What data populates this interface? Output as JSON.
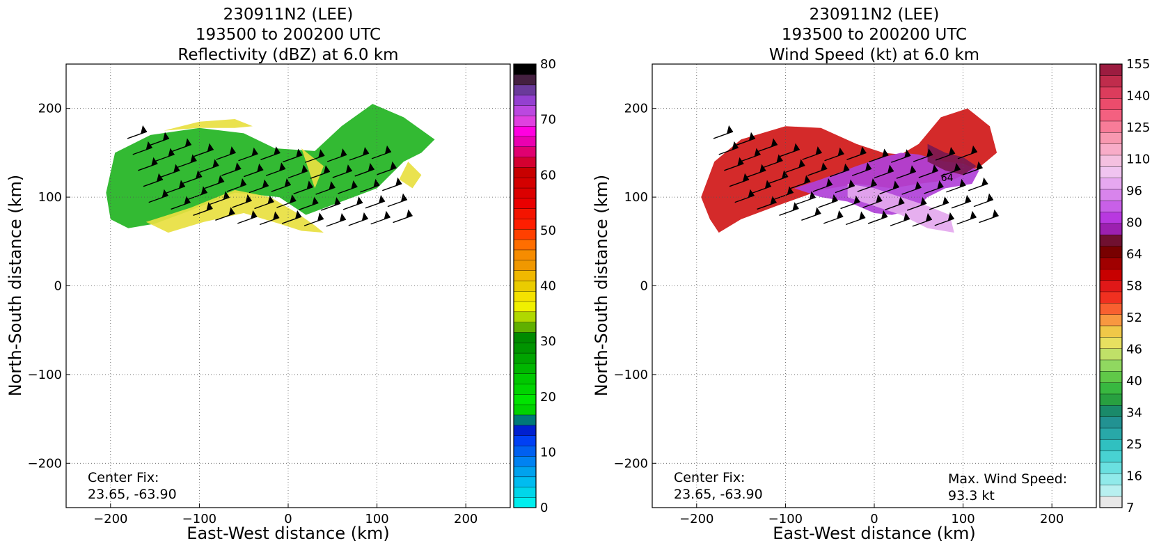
{
  "chart_data": [
    {
      "type": "heatmap",
      "title": [
        "230911N2 (LEE)",
        "193500 to 200200 UTC",
        "Reflectivity (dBZ) at 6.0 km"
      ],
      "xlabel": "East-West distance (km)",
      "ylabel": "North-South distance (km)",
      "xlim": [
        -250,
        250
      ],
      "ylim": [
        -250,
        250
      ],
      "xticks": [
        -200,
        -100,
        0,
        100,
        200
      ],
      "yticks": [
        -200,
        -100,
        0,
        100,
        200
      ],
      "xticklabels": [
        "−200",
        "−100",
        "0",
        "100",
        "200"
      ],
      "yticklabels": [
        "−200",
        "−100",
        "0",
        "100",
        "200"
      ],
      "grid": true,
      "annotation": [
        "Center Fix:",
        "23.65, -63.90"
      ],
      "colorbar": {
        "ticks": [
          "0",
          "10",
          "20",
          "30",
          "40",
          "50",
          "60",
          "70",
          "80"
        ],
        "colors": [
          "#00eeee",
          "#00d6ea",
          "#00bcf0",
          "#00a2ee",
          "#0082f2",
          "#0060f0",
          "#0040f4",
          "#0020d0",
          "#007878",
          "#00d200",
          "#00e400",
          "#00d400",
          "#00c800",
          "#00b600",
          "#00a400",
          "#009400",
          "#008a00",
          "#60b000",
          "#b0d800",
          "#f0f000",
          "#f4e200",
          "#eacc00",
          "#f0b800",
          "#f09800",
          "#f68c00",
          "#ff6e00",
          "#ff4000",
          "#ff1e00",
          "#f41400",
          "#ea0000",
          "#dc0000",
          "#d40000",
          "#c80000",
          "#d40030",
          "#e00070",
          "#ea00b0",
          "#ff00e0",
          "#e040e0",
          "#bb48e0",
          "#9440d0",
          "#6a3a9a",
          "#442040",
          "#000000"
        ]
      },
      "regions": [
        {
          "level": "green",
          "polygon": [
            [
              -200,
              75
            ],
            [
              -205,
              105
            ],
            [
              -195,
              150
            ],
            [
              -155,
              170
            ],
            [
              -100,
              178
            ],
            [
              -50,
              172
            ],
            [
              -15,
              155
            ],
            [
              30,
              152
            ],
            [
              60,
              180
            ],
            [
              95,
              205
            ],
            [
              130,
              190
            ],
            [
              165,
              165
            ],
            [
              150,
              150
            ],
            [
              130,
              140
            ],
            [
              100,
              110
            ],
            [
              60,
              95
            ],
            [
              20,
              80
            ],
            [
              -10,
              100
            ],
            [
              -60,
              105
            ],
            [
              -110,
              85
            ],
            [
              -150,
              70
            ],
            [
              -180,
              65
            ]
          ]
        },
        {
          "level": "yellow",
          "polygon": [
            [
              -160,
              72
            ],
            [
              -110,
              88
            ],
            [
              -60,
              108
            ],
            [
              -20,
              100
            ],
            [
              10,
              82
            ],
            [
              30,
              68
            ],
            [
              40,
              60
            ],
            [
              15,
              62
            ],
            [
              -10,
              70
            ],
            [
              -50,
              82
            ],
            [
              -95,
              72
            ],
            [
              -135,
              60
            ]
          ]
        },
        {
          "level": "yellow",
          "polygon": [
            [
              -140,
              175
            ],
            [
              -100,
              185
            ],
            [
              -60,
              188
            ],
            [
              -40,
              180
            ],
            [
              -60,
              178
            ],
            [
              -100,
              178
            ]
          ]
        },
        {
          "level": "yellow",
          "polygon": [
            [
              15,
              155
            ],
            [
              40,
              135
            ],
            [
              30,
              110
            ],
            [
              20,
              140
            ]
          ]
        },
        {
          "level": "yellow",
          "polygon": [
            [
              135,
              140
            ],
            [
              150,
              125
            ],
            [
              140,
              110
            ],
            [
              125,
              120
            ]
          ]
        }
      ]
    },
    {
      "type": "heatmap",
      "title": [
        "230911N2 (LEE)",
        "193500 to 200200 UTC",
        "Wind Speed (kt) at 6.0 km"
      ],
      "xlabel": "East-West distance (km)",
      "ylabel": "North-South distance (km)",
      "xlim": [
        -250,
        250
      ],
      "ylim": [
        -250,
        250
      ],
      "xticks": [
        -200,
        -100,
        0,
        100,
        200
      ],
      "yticks": [
        -200,
        -100,
        0,
        100,
        200
      ],
      "xticklabels": [
        "−200",
        "−100",
        "0",
        "100",
        "200"
      ],
      "yticklabels": [
        "−200",
        "−100",
        "0",
        "100",
        "200"
      ],
      "grid": true,
      "annotation": [
        "Center Fix:",
        "23.65, -63.90"
      ],
      "annotation2": [
        "Max. Wind Speed:",
        "93.3 kt"
      ],
      "contour_labels": [
        "64"
      ],
      "colorbar": {
        "ticks": [
          "7",
          "16",
          "25",
          "34",
          "40",
          "46",
          "52",
          "58",
          "64",
          "80",
          "96",
          "110",
          "125",
          "140",
          "155"
        ],
        "colors": [
          "#e8e8e8",
          "#b8f0f0",
          "#90eaea",
          "#6ae0e0",
          "#48d2d2",
          "#30c0c0",
          "#28a8a8",
          "#229292",
          "#1a8a6a",
          "#28a040",
          "#38b840",
          "#60c848",
          "#90d860",
          "#c0e068",
          "#e8e060",
          "#f0c848",
          "#f89840",
          "#f86030",
          "#f03020",
          "#e01818",
          "#c80000",
          "#a00000",
          "#780000",
          "#701030",
          "#9c20b0",
          "#b838e0",
          "#c860e8",
          "#d884ec",
          "#e6a8f0",
          "#f0c4f0",
          "#f4c0e0",
          "#f8acc8",
          "#f898b0",
          "#f87c98",
          "#f46080",
          "#ec4c6c",
          "#dc3c5c",
          "#c02c4c",
          "#9c1c40"
        ]
      },
      "regions": [
        {
          "level": "red",
          "polygon": [
            [
              -195,
              100
            ],
            [
              -180,
              140
            ],
            [
              -150,
              165
            ],
            [
              -100,
              180
            ],
            [
              -60,
              178
            ],
            [
              -20,
              160
            ],
            [
              10,
              150
            ],
            [
              30,
              148
            ],
            [
              50,
              160
            ],
            [
              75,
              190
            ],
            [
              105,
              200
            ],
            [
              130,
              180
            ],
            [
              138,
              150
            ],
            [
              120,
              135
            ],
            [
              90,
              120
            ],
            [
              50,
              115
            ],
            [
              20,
              110
            ],
            [
              -20,
              115
            ],
            [
              -60,
              108
            ],
            [
              -110,
              90
            ],
            [
              -150,
              75
            ],
            [
              -175,
              60
            ],
            [
              -185,
              75
            ]
          ]
        },
        {
          "level": "purple",
          "polygon": [
            [
              -90,
              110
            ],
            [
              -60,
              120
            ],
            [
              -20,
              135
            ],
            [
              10,
              145
            ],
            [
              30,
              150
            ],
            [
              50,
              148
            ],
            [
              80,
              140
            ],
            [
              100,
              138
            ],
            [
              118,
              130
            ],
            [
              110,
              115
            ],
            [
              80,
              110
            ],
            [
              60,
              100
            ],
            [
              50,
              90
            ],
            [
              40,
              85
            ],
            [
              20,
              80
            ],
            [
              0,
              82
            ],
            [
              -30,
              95
            ],
            [
              -60,
              100
            ]
          ]
        },
        {
          "level": "lavender",
          "polygon": [
            [
              -30,
              100
            ],
            [
              0,
              90
            ],
            [
              30,
              80
            ],
            [
              60,
              65
            ],
            [
              90,
              60
            ],
            [
              85,
              80
            ],
            [
              60,
              90
            ],
            [
              30,
              100
            ],
            [
              0,
              110
            ],
            [
              -30,
              115
            ]
          ]
        },
        {
          "level": "darkpurple",
          "polygon": [
            [
              60,
              160
            ],
            [
              80,
              150
            ],
            [
              100,
              145
            ],
            [
              115,
              135
            ],
            [
              100,
              125
            ],
            [
              80,
              130
            ],
            [
              60,
              140
            ]
          ]
        }
      ]
    }
  ]
}
